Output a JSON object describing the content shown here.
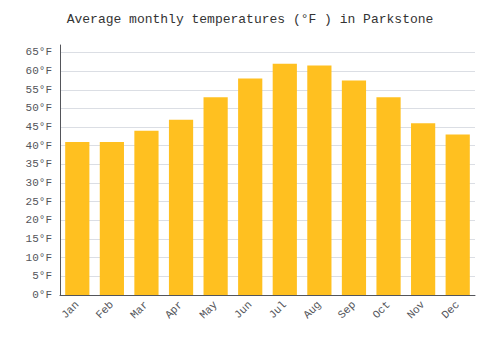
{
  "chart_data": {
    "type": "bar",
    "title": "Average monthly temperatures (°F ) in Parkstone",
    "categories": [
      "Jan",
      "Feb",
      "Mar",
      "Apr",
      "May",
      "Jun",
      "Jul",
      "Aug",
      "Sep",
      "Oct",
      "Nov",
      "Dec"
    ],
    "values": [
      41,
      41,
      44,
      47,
      53,
      58,
      62,
      61.5,
      57.5,
      53,
      46,
      43
    ],
    "color": "#FFC020",
    "ylim": [
      0,
      67
    ],
    "yticks": [
      {
        "value": 0,
        "label": "0°F"
      },
      {
        "value": 5,
        "label": "5°F"
      },
      {
        "value": 10,
        "label": "10°F"
      },
      {
        "value": 15,
        "label": "15°F"
      },
      {
        "value": 20,
        "label": "20°F"
      },
      {
        "value": 25,
        "label": "25°F"
      },
      {
        "value": 30,
        "label": "30°F"
      },
      {
        "value": 35,
        "label": "35°F"
      },
      {
        "value": 40,
        "label": "40°F"
      },
      {
        "value": 45,
        "label": "45°F"
      },
      {
        "value": 50,
        "label": "50°F"
      },
      {
        "value": 55,
        "label": "55°F"
      },
      {
        "value": 60,
        "label": "60°F"
      },
      {
        "value": 65,
        "label": "65°F"
      }
    ],
    "grid": true
  }
}
